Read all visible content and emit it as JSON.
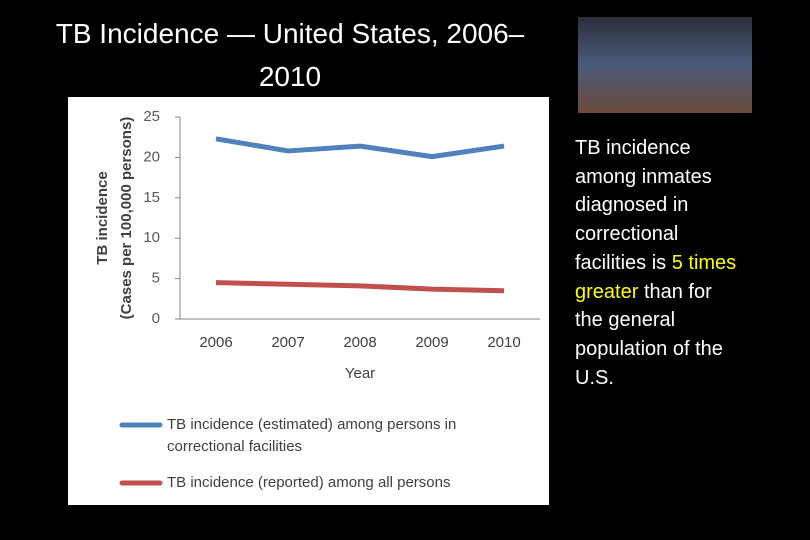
{
  "chart_data": {
    "type": "line",
    "title": "TB Incidence — United States, 2006–2010",
    "x_label": "Year",
    "y_label": [
      "TB incidence",
      "(Cases per 100,000 persons)"
    ],
    "categories": [
      "2006",
      "2007",
      "2008",
      "2009",
      "2010"
    ],
    "series": [
      {
        "name": "TB incidence (estimated) among persons in correctional facilities",
        "color": "#4f81bd",
        "values": [
          22.3,
          20.8,
          21.4,
          20.1,
          21.4
        ]
      },
      {
        "name": "TB incidence (reported) among all persons",
        "color": "#c0504d",
        "values": [
          4.5,
          4.3,
          4.1,
          3.7,
          3.5
        ]
      }
    ],
    "ylim": [
      0,
      25
    ],
    "yticks": [
      0,
      5,
      10,
      15,
      20,
      25
    ],
    "grid": false,
    "legend": "bottom"
  },
  "side_text": {
    "before": "TB incidence among inmates diagnosed in correctional facilities is",
    "highlight": "5 times greater",
    "after": "than for the general population of the U.S."
  }
}
